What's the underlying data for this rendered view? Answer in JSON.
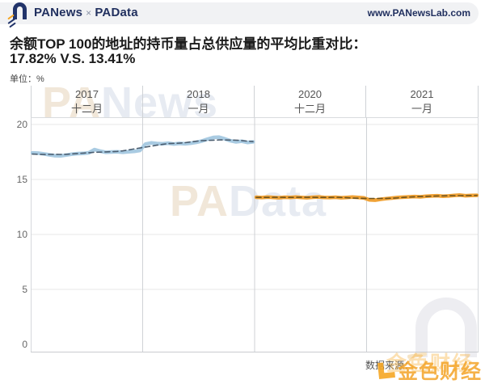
{
  "header": {
    "brand_left": "PANews",
    "brand_sep": "×",
    "brand_right": "PAData",
    "site_url": "www.PANewsLab.com"
  },
  "title": {
    "line1": "余额TOP 100的地址的持币量占总供应量的平均比重对比：",
    "line2": "17.82% V.S. 13.41%",
    "unit_label": "单位：%"
  },
  "watermarks": {
    "pa_news": {
      "p1": "PA",
      "p2": "News"
    },
    "pa_data": {
      "p1": "PA",
      "p2": "Data"
    },
    "corner_brand": "金色财经"
  },
  "footer": {
    "data_source_label": "数据来源："
  },
  "chart_data": {
    "type": "line",
    "title": "余额TOP 100的地址的持币量占总供应量的平均比重对比：17.82% V.S. 13.41%",
    "unit": "%",
    "ylim": [
      0,
      20
    ],
    "yticks": [
      20,
      15,
      10,
      5,
      0
    ],
    "grid": true,
    "legend_position": "none",
    "x_axis": {
      "position": "top",
      "columns": [
        {
          "year": "2017",
          "month": "十二月"
        },
        {
          "year": "2018",
          "month": "一月"
        },
        {
          "year": "2020",
          "month": "十二月"
        },
        {
          "year": "2021",
          "month": "一月"
        }
      ]
    },
    "average_line_style": "dashed",
    "series": [
      {
        "name": "2017年12月-2018年1月",
        "average": 17.82,
        "color": "#a9cbe2",
        "avg_line_color": "#4c5e70",
        "span_columns": [
          0,
          1
        ],
        "values": [
          17.42,
          17.4,
          17.33,
          17.24,
          17.16,
          17.15,
          17.22,
          17.3,
          17.35,
          17.37,
          17.43,
          17.72,
          17.57,
          17.47,
          17.5,
          17.52,
          17.47,
          17.52,
          17.55,
          17.63,
          18.22,
          18.32,
          18.27,
          18.24,
          18.3,
          18.22,
          18.28,
          18.24,
          18.3,
          18.38,
          18.5,
          18.68,
          18.82,
          18.85,
          18.7,
          18.52,
          18.42,
          18.48,
          18.37,
          18.42
        ]
      },
      {
        "name": "2020年12月-2021年1月",
        "average": 13.41,
        "color": "#f0a236",
        "avg_line_color": "#6e531d",
        "span_columns": [
          2,
          3
        ],
        "values": [
          13.38,
          13.35,
          13.4,
          13.37,
          13.34,
          13.38,
          13.36,
          13.4,
          13.37,
          13.34,
          13.38,
          13.41,
          13.37,
          13.35,
          13.38,
          13.34,
          13.37,
          13.4,
          13.36,
          13.32,
          13.14,
          13.12,
          13.2,
          13.26,
          13.31,
          13.36,
          13.39,
          13.42,
          13.45,
          13.42,
          13.47,
          13.5,
          13.52,
          13.48,
          13.5,
          13.55,
          13.58,
          13.52,
          13.55,
          13.56
        ]
      }
    ]
  }
}
